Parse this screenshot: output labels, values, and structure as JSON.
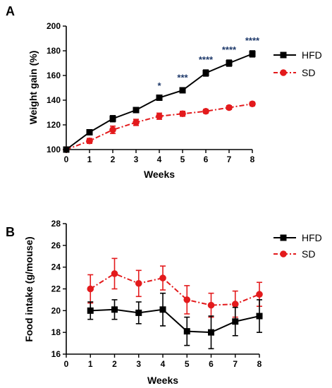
{
  "chart_data": [
    {
      "type": "line",
      "panel_label": "A",
      "xlabel": "Weeks",
      "ylabel": "Weight gain (%)",
      "x": [
        0,
        1,
        2,
        3,
        4,
        5,
        6,
        7,
        8
      ],
      "xlim": [
        0,
        8
      ],
      "ylim": [
        100,
        200
      ],
      "yticks": [
        100,
        120,
        140,
        160,
        180,
        200
      ],
      "series": [
        {
          "name": "HFD",
          "color": "#000000",
          "marker": "square",
          "dash": "solid",
          "values": [
            100,
            114,
            125,
            132,
            142,
            148,
            162,
            170,
            177.5
          ],
          "errors": [
            0,
            1.5,
            2.5,
            1.5,
            1.5,
            2,
            2.5,
            2.5,
            2.5
          ]
        },
        {
          "name": "SD",
          "color": "#e31a1c",
          "marker": "circle",
          "dash": "dashdot",
          "values": [
            100,
            107,
            116,
            122,
            127,
            129,
            131,
            134,
            137
          ],
          "errors": [
            0,
            2,
            3,
            2.5,
            2.5,
            2,
            1.5,
            1.5,
            1.5
          ]
        }
      ],
      "significance": [
        {
          "x": 4,
          "label": "*"
        },
        {
          "x": 5,
          "label": "***"
        },
        {
          "x": 6,
          "label": "****"
        },
        {
          "x": 7,
          "label": "****"
        },
        {
          "x": 8,
          "label": "****"
        }
      ],
      "legend": "right"
    },
    {
      "type": "line",
      "panel_label": "B",
      "xlabel": "Weeks",
      "ylabel": "Food intake (g/mouse)",
      "x": [
        1,
        2,
        3,
        4,
        5,
        6,
        7,
        8
      ],
      "xlim": [
        0,
        8
      ],
      "ylim": [
        16,
        28
      ],
      "yticks": [
        16,
        18,
        20,
        22,
        24,
        26,
        28
      ],
      "xticks": [
        0,
        1,
        2,
        3,
        4,
        5,
        6,
        7,
        8
      ],
      "series": [
        {
          "name": "HFD",
          "color": "#000000",
          "marker": "square",
          "dash": "solid",
          "values": [
            20,
            20.1,
            19.8,
            20.1,
            18.1,
            18,
            19,
            19.5
          ],
          "errors": [
            0.8,
            0.9,
            1.0,
            1.5,
            1.3,
            1.5,
            1.3,
            1.5
          ]
        },
        {
          "name": "SD",
          "color": "#e31a1c",
          "marker": "circle",
          "dash": "dashdot",
          "values": [
            22,
            23.4,
            22.5,
            23,
            21,
            20.5,
            20.6,
            21.5
          ],
          "errors": [
            1.3,
            1.4,
            1.2,
            1.1,
            1.3,
            1.1,
            1.2,
            1.1
          ]
        }
      ],
      "legend": "right"
    }
  ]
}
